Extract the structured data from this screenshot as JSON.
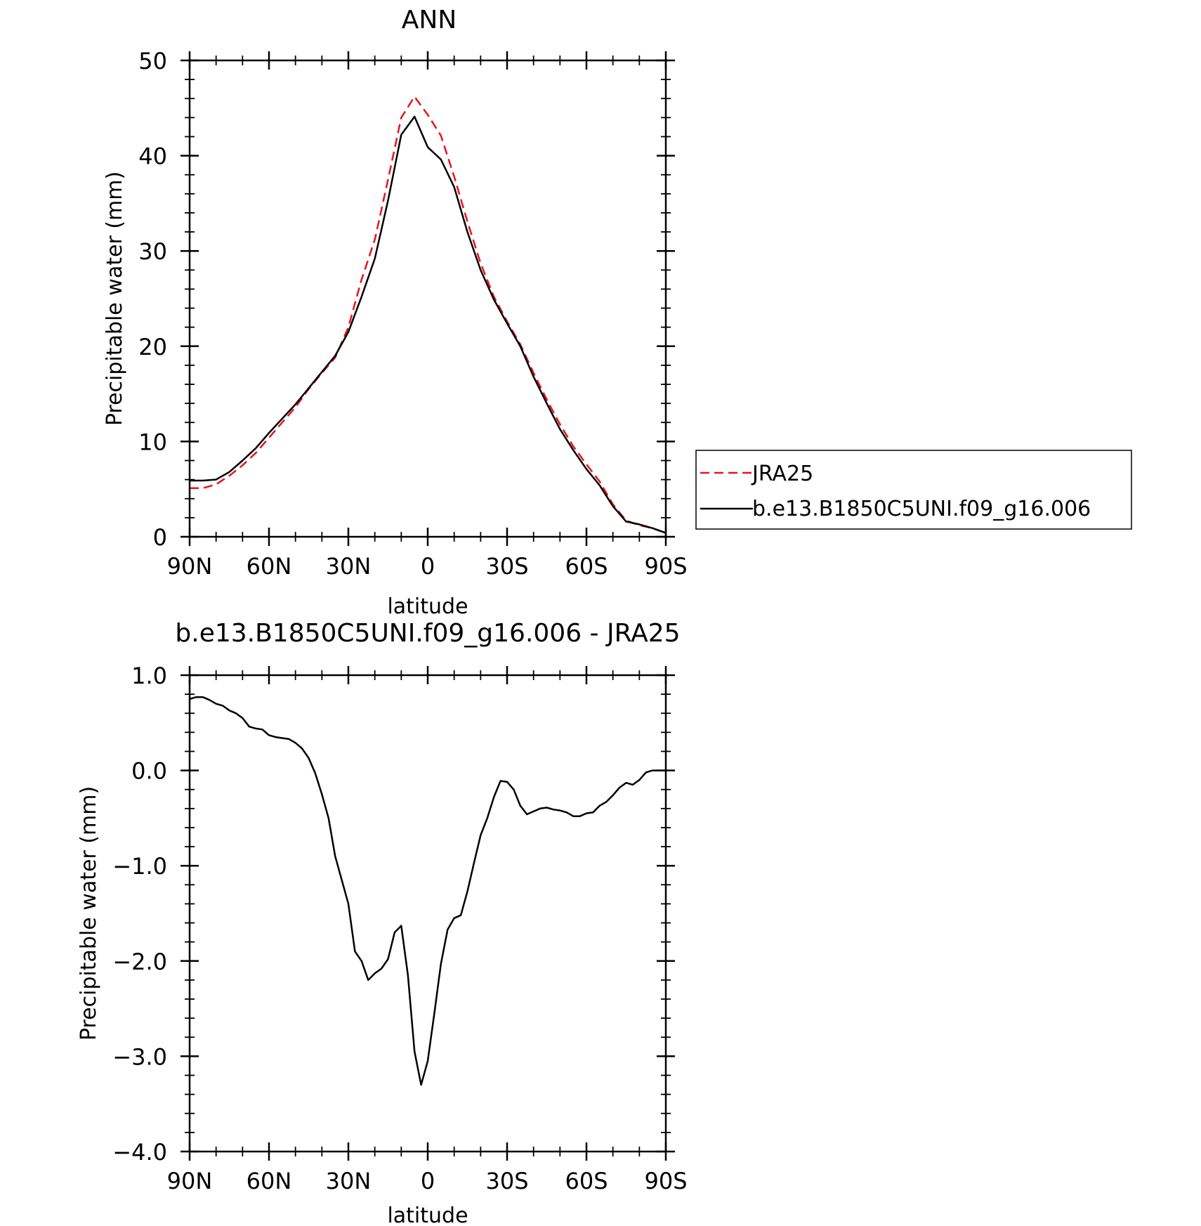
{
  "chart_data": [
    {
      "type": "line",
      "title": "ANN",
      "xlabel": "latitude",
      "ylabel": "Precipitable water (mm)",
      "xlim": [
        90,
        -90
      ],
      "ylim": [
        0,
        50
      ],
      "xticks": [
        90,
        60,
        30,
        0,
        -30,
        -60,
        -90
      ],
      "xtick_labels": [
        "90N",
        "60N",
        "30N",
        "0",
        "30S",
        "60S",
        "90S"
      ],
      "yticks": [
        0,
        10,
        20,
        30,
        40,
        50
      ],
      "ytick_labels": [
        "0",
        "10",
        "20",
        "30",
        "40",
        "50"
      ],
      "grid": false,
      "legend": "right",
      "series": [
        {
          "name": "JRA25",
          "color": "#e8141c",
          "dash": "dashed",
          "x": [
            90,
            85,
            80,
            75,
            70,
            65,
            60,
            55,
            50,
            45,
            40,
            35,
            30,
            25,
            20,
            15,
            10,
            5,
            0,
            -5,
            -10,
            -15,
            -20,
            -25,
            -30,
            -35,
            -40,
            -45,
            -50,
            -55,
            -60,
            -65,
            -70,
            -75,
            -80,
            -85,
            -90
          ],
          "y": [
            5.1,
            5.1,
            5.5,
            6.4,
            7.5,
            8.8,
            10.4,
            12.0,
            13.6,
            15.5,
            17.2,
            18.8,
            22.0,
            27.0,
            31.2,
            37.5,
            44.0,
            46.2,
            44.3,
            42.1,
            37.8,
            33.1,
            28.7,
            25.2,
            22.6,
            20.2,
            17.2,
            14.4,
            11.8,
            9.5,
            7.6,
            5.8,
            3.4,
            1.7,
            1.2,
            0.9,
            0.4
          ]
        },
        {
          "name": "b.e13.B1850C5UNI.f09_g16.006",
          "color": "#000000",
          "dash": "solid",
          "x": [
            90,
            85,
            80,
            75,
            70,
            65,
            60,
            55,
            50,
            45,
            40,
            35,
            30,
            25,
            20,
            15,
            10,
            5,
            0,
            -5,
            -10,
            -15,
            -20,
            -25,
            -30,
            -35,
            -40,
            -45,
            -50,
            -55,
            -60,
            -65,
            -70,
            -75,
            -80,
            -85,
            -90
          ],
          "y": [
            5.9,
            5.9,
            6.0,
            6.8,
            8.0,
            9.3,
            10.9,
            12.4,
            13.9,
            15.6,
            17.3,
            19.0,
            21.5,
            25.2,
            29.2,
            35.3,
            42.2,
            44.1,
            40.9,
            39.6,
            36.7,
            32.0,
            28.0,
            24.9,
            22.4,
            20.0,
            16.8,
            14.0,
            11.3,
            9.1,
            7.1,
            5.4,
            3.2,
            1.6,
            1.3,
            0.9,
            0.4
          ]
        }
      ]
    },
    {
      "type": "line",
      "title": "b.e13.B1850C5UNI.f09_g16.006 - JRA25",
      "xlabel": "latitude",
      "ylabel": "Precipitable water (mm)",
      "xlim": [
        90,
        -90
      ],
      "ylim": [
        -4.0,
        1.0
      ],
      "xticks": [
        90,
        60,
        30,
        0,
        -30,
        -60,
        -90
      ],
      "xtick_labels": [
        "90N",
        "60N",
        "30N",
        "0",
        "30S",
        "60S",
        "90S"
      ],
      "yticks": [
        -4.0,
        -3.0,
        -2.0,
        -1.0,
        0.0,
        1.0
      ],
      "ytick_labels": [
        "−4.0",
        "−3.0",
        "−2.0",
        "−1.0",
        "0.0",
        "1.0"
      ],
      "grid": false,
      "series": [
        {
          "color": "#000000",
          "dash": "solid",
          "x": [
            90,
            87.5,
            85,
            82.5,
            80,
            77.5,
            75,
            72.5,
            70,
            67.5,
            65,
            62.5,
            60,
            57.5,
            55,
            52.5,
            50,
            47.5,
            45,
            42.5,
            40,
            37.5,
            35,
            32.5,
            30,
            27.5,
            25,
            22.5,
            20,
            17.5,
            15,
            12.5,
            10,
            7.5,
            5,
            2.5,
            0,
            -2.5,
            -5,
            -7.5,
            -10,
            -12.5,
            -15,
            -17.5,
            -20,
            -22.5,
            -25,
            -27.5,
            -30,
            -32.5,
            -35,
            -37.5,
            -40,
            -42.5,
            -45,
            -47.5,
            -50,
            -52.5,
            -55,
            -57.5,
            -60,
            -62.5,
            -65,
            -67.5,
            -70,
            -72.5,
            -75,
            -77.5,
            -80,
            -82.5,
            -85,
            -87.5,
            -90
          ],
          "y": [
            0.75,
            0.77,
            0.77,
            0.74,
            0.7,
            0.68,
            0.63,
            0.6,
            0.55,
            0.46,
            0.44,
            0.43,
            0.37,
            0.35,
            0.34,
            0.33,
            0.29,
            0.23,
            0.13,
            -0.03,
            -0.25,
            -0.5,
            -0.9,
            -1.15,
            -1.4,
            -1.9,
            -2.0,
            -2.2,
            -2.13,
            -2.08,
            -1.98,
            -1.7,
            -1.63,
            -2.15,
            -2.95,
            -3.3,
            -3.05,
            -2.55,
            -2.03,
            -1.67,
            -1.55,
            -1.52,
            -1.27,
            -0.97,
            -0.68,
            -0.5,
            -0.28,
            -0.11,
            -0.12,
            -0.2,
            -0.37,
            -0.46,
            -0.43,
            -0.4,
            -0.39,
            -0.41,
            -0.42,
            -0.44,
            -0.48,
            -0.48,
            -0.45,
            -0.44,
            -0.37,
            -0.33,
            -0.26,
            -0.18,
            -0.13,
            -0.15,
            -0.1,
            -0.02,
            0.0,
            0.0,
            0.0
          ]
        }
      ]
    }
  ]
}
